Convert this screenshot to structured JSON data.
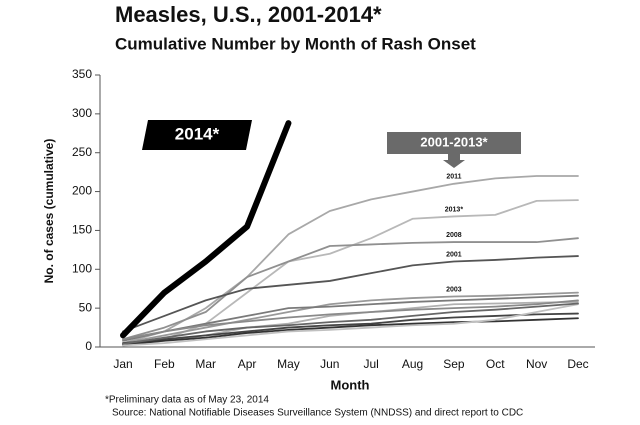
{
  "chart_data": {
    "type": "line",
    "title": "Measles, U.S., 2001-2014*",
    "subtitle": "Cumulative Number by Month of Rash Onset",
    "y_label": "No. of cases (cumulative)",
    "x_label": "Month",
    "footnote": "*Preliminary data as of May 23, 2014",
    "source": "Source:  National Notifiable Diseases Surveillance System (NNDSS)  and direct report to CDC",
    "annotations": [
      "2014*",
      "2001-2013*"
    ],
    "categories": [
      "Jan",
      "Feb",
      "Mar",
      "Apr",
      "May",
      "Jun",
      "Jul",
      "Aug",
      "Sep",
      "Oct",
      "Nov",
      "Dec"
    ],
    "ylim": [
      0,
      350
    ],
    "yticks": [
      0,
      50,
      100,
      150,
      200,
      250,
      300,
      350
    ],
    "series": [
      {
        "name": "2011",
        "color": "#a8a8a8",
        "values": [
          5,
          20,
          50,
          90,
          145,
          175,
          190,
          200,
          210,
          217,
          220,
          220
        ]
      },
      {
        "name": "2013*",
        "color": "#b8b8b8",
        "values": [
          3,
          10,
          30,
          70,
          110,
          120,
          140,
          165,
          168,
          170,
          188,
          189
        ]
      },
      {
        "name": "2008",
        "color": "#909090",
        "values": [
          10,
          25,
          45,
          90,
          110,
          130,
          132,
          134,
          135,
          135,
          135,
          140
        ]
      },
      {
        "name": "2001",
        "color": "#555555",
        "values": [
          20,
          40,
          60,
          75,
          80,
          85,
          95,
          105,
          110,
          112,
          115,
          117
        ]
      },
      {
        "name": "2003",
        "color": "#999999",
        "values": [
          5,
          15,
          25,
          35,
          45,
          55,
          60,
          63,
          65,
          66,
          68,
          70
        ]
      },
      {
        "color": "#7a7a7a",
        "values": [
          8,
          20,
          30,
          40,
          50,
          52,
          55,
          58,
          60,
          62,
          64,
          66
        ]
      },
      {
        "color": "#b0b0b0",
        "values": [
          2,
          8,
          15,
          25,
          30,
          40,
          45,
          50,
          55,
          56,
          57,
          58
        ]
      },
      {
        "color": "#444444",
        "values": [
          5,
          10,
          15,
          20,
          25,
          28,
          30,
          35,
          38,
          40,
          42,
          43
        ]
      },
      {
        "color": "#333333",
        "values": [
          3,
          8,
          12,
          18,
          22,
          25,
          28,
          30,
          32,
          33,
          35,
          37
        ]
      },
      {
        "color": "#c0c0c0",
        "values": [
          2,
          5,
          10,
          15,
          20,
          22,
          25,
          28,
          30,
          35,
          45,
          55
        ]
      },
      {
        "color": "#8a8a8a",
        "values": [
          10,
          20,
          28,
          33,
          38,
          42,
          45,
          48,
          50,
          52,
          55,
          60
        ]
      },
      {
        "color": "#666666",
        "values": [
          4,
          12,
          20,
          25,
          28,
          32,
          35,
          40,
          45,
          48,
          52,
          56
        ]
      },
      {
        "name": "2014*",
        "color": "#000000",
        "bold": true,
        "values": [
          15,
          70,
          110,
          155,
          288,
          null,
          null,
          null,
          null,
          null,
          null,
          null
        ]
      }
    ]
  }
}
